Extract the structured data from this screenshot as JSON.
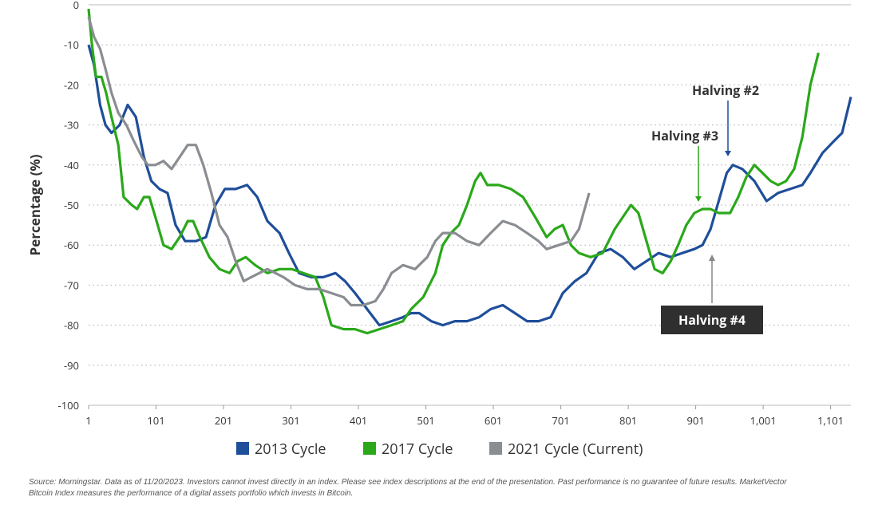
{
  "chart_data": {
    "type": "line",
    "y_label": "Percentage (%)",
    "xlim": [
      1,
      1131
    ],
    "ylim": [
      -100,
      0
    ],
    "yticks": [
      0,
      -10,
      -20,
      -30,
      -40,
      -50,
      -60,
      -70,
      -80,
      -90,
      -100
    ],
    "xticks": [
      1,
      101,
      201,
      301,
      401,
      501,
      601,
      701,
      801,
      901,
      {
        "value": 1001,
        "label": "1,001"
      },
      {
        "value": 1101,
        "label": "1,101"
      }
    ],
    "grid": true,
    "series": [
      {
        "name": "2013 Cycle",
        "color": "#1f4e9a",
        "x": [
          1,
          9,
          18,
          26,
          35,
          47,
          59,
          71,
          83,
          94,
          106,
          118,
          130,
          144,
          160,
          175,
          189,
          203,
          219,
          236,
          251,
          266,
          284,
          298,
          313,
          331,
          349,
          367,
          381,
          396,
          414,
          432,
          450,
          467,
          479,
          491,
          509,
          526,
          544,
          562,
          580,
          597,
          615,
          633,
          651,
          668,
          686,
          704,
          722,
          739,
          757,
          775,
          793,
          810,
          828,
          846,
          864,
          881,
          899,
          911,
          923,
          935,
          947,
          956,
          970,
          988,
          1006,
          1023,
          1041,
          1059,
          1071,
          1089,
          1106,
          1118,
          1131
        ],
        "values": [
          -10,
          -15,
          -25,
          -30,
          -32,
          -30,
          -25,
          -28,
          -38,
          -44,
          -46,
          -47,
          -55,
          -59,
          -59,
          -58,
          -50,
          -46,
          -46,
          -45,
          -48,
          -54,
          -57,
          -62,
          -67,
          -68,
          -68,
          -67,
          -69,
          -72,
          -76,
          -80,
          -79,
          -78,
          -77,
          -77,
          -79,
          -80,
          -79,
          -79,
          -78,
          -76,
          -75,
          -77,
          -79,
          -79,
          -78,
          -72,
          -69,
          -67,
          -62,
          -61,
          -63,
          -66,
          -64,
          -62,
          -63,
          -62,
          -61,
          -60,
          -56,
          -49,
          -42,
          -40,
          -41,
          -44,
          -49,
          -47,
          -46,
          -45,
          -42,
          -37,
          -34,
          -32,
          -23
        ]
      },
      {
        "name": "2017 Cycle",
        "color": "#2aa81a",
        "x": [
          1,
          6,
          12,
          20,
          27,
          35,
          45,
          53,
          65,
          73,
          83,
          91,
          100,
          112,
          124,
          136,
          148,
          156,
          166,
          180,
          195,
          210,
          222,
          234,
          248,
          266,
          284,
          302,
          319,
          337,
          349,
          361,
          379,
          396,
          414,
          432,
          450,
          467,
          479,
          497,
          515,
          526,
          538,
          550,
          562,
          574,
          582,
          592,
          609,
          627,
          645,
          663,
          680,
          692,
          704,
          716,
          728,
          745,
          763,
          781,
          793,
          805,
          816,
          828,
          840,
          852,
          864,
          875,
          887,
          899,
          911,
          923,
          935,
          952,
          964,
          976,
          988,
          1000,
          1012,
          1023,
          1035,
          1047,
          1059,
          1071,
          1083
        ],
        "values": [
          -1,
          -10,
          -18,
          -18,
          -22,
          -28,
          -35,
          -48,
          -50,
          -51,
          -48,
          -48,
          -53,
          -60,
          -61,
          -58,
          -54,
          -54,
          -58,
          -63,
          -66,
          -67,
          -64,
          -63,
          -65,
          -67,
          -66,
          -66,
          -67,
          -68,
          -73,
          -80,
          -81,
          -81,
          -82,
          -81,
          -80,
          -79,
          -76,
          -73,
          -67,
          -60,
          -57,
          -55,
          -50,
          -44,
          -42,
          -45,
          -45,
          -46,
          -48,
          -53,
          -58,
          -56,
          -55,
          -60,
          -62,
          -63,
          -62,
          -56,
          -53,
          -50,
          -52,
          -59,
          -66,
          -67,
          -64,
          -60,
          -55,
          -52,
          -51,
          -51,
          -52,
          -52,
          -48,
          -43,
          -40,
          -42,
          -44,
          -45,
          -44,
          -41,
          -33,
          -20,
          -12
        ]
      },
      {
        "name": "2021 Cycle (Current)",
        "color": "#8a8d91",
        "x": [
          1,
          9,
          18,
          26,
          35,
          45,
          57,
          68,
          80,
          89,
          100,
          112,
          124,
          136,
          148,
          160,
          171,
          183,
          195,
          207,
          219,
          231,
          242,
          254,
          266,
          278,
          290,
          307,
          325,
          343,
          361,
          379,
          390,
          408,
          426,
          438,
          450,
          467,
          485,
          503,
          515,
          526,
          544,
          562,
          580,
          597,
          615,
          633,
          651,
          668,
          680,
          698,
          716,
          728,
          743
        ],
        "values": [
          -3,
          -8,
          -11,
          -16,
          -22,
          -27,
          -30,
          -34,
          -38,
          -40,
          -40,
          -39,
          -41,
          -38,
          -35,
          -35,
          -40,
          -47,
          -55,
          -58,
          -64,
          -69,
          -68,
          -67,
          -66,
          -67,
          -68,
          -70,
          -71,
          -71,
          -72,
          -73,
          -75,
          -75,
          -74,
          -71,
          -67,
          -65,
          -66,
          -63,
          -59,
          -57,
          -57,
          -59,
          -60,
          -57,
          -54,
          -55,
          -57,
          -59,
          -61,
          -60,
          -59,
          -56,
          -47
        ]
      }
    ],
    "annotations": [
      "Halving #2",
      "Halving #3",
      "Halving #4"
    ],
    "source": [
      "Source: Morningstar. Data as of 11/20/2023. Investors cannot invest directly in an index. Please see index descriptions at the end of the presentation. Past performance is no guarantee of future results. MarketVector",
      "Bitcoin Index measures the performance of a digital assets portfolio which invests in Bitcoin."
    ]
  }
}
